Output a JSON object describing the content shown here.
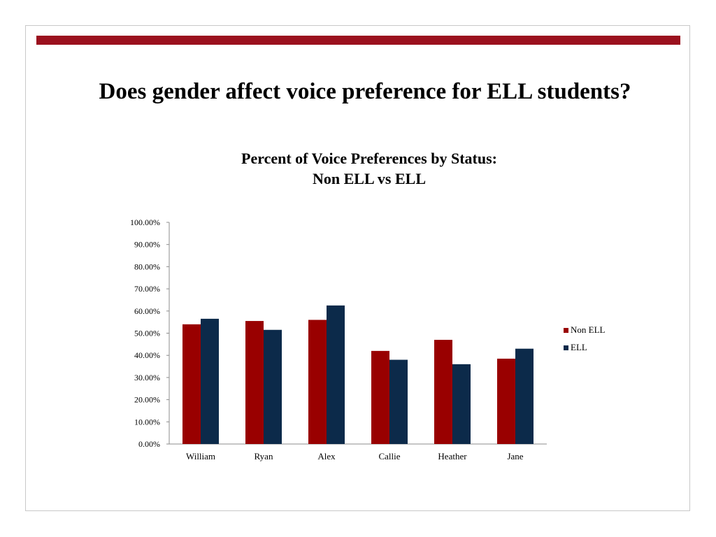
{
  "slide": {
    "title": "Does gender affect voice preference for ELL students?",
    "accent_color": "#9b111e"
  },
  "chart_data": {
    "type": "bar",
    "title_lines": [
      "Percent of Voice Preferences by Status:",
      "Non ELL vs ELL"
    ],
    "categories": [
      "William",
      "Ryan",
      "Alex",
      "Callie",
      "Heather",
      "Jane"
    ],
    "series": [
      {
        "name": "Non ELL",
        "color": "#990000",
        "values": [
          54.0,
          55.5,
          56.0,
          42.0,
          47.0,
          38.5
        ]
      },
      {
        "name": "ELL",
        "color": "#0c2a4a",
        "values": [
          56.5,
          51.5,
          62.5,
          38.0,
          36.0,
          43.0
        ]
      }
    ],
    "ylim": [
      0,
      100
    ],
    "yticks": [
      "0.00%",
      "10.00%",
      "20.00%",
      "30.00%",
      "40.00%",
      "50.00%",
      "60.00%",
      "70.00%",
      "80.00%",
      "90.00%",
      "100.00%"
    ],
    "grid": false,
    "legend_position": "right"
  }
}
